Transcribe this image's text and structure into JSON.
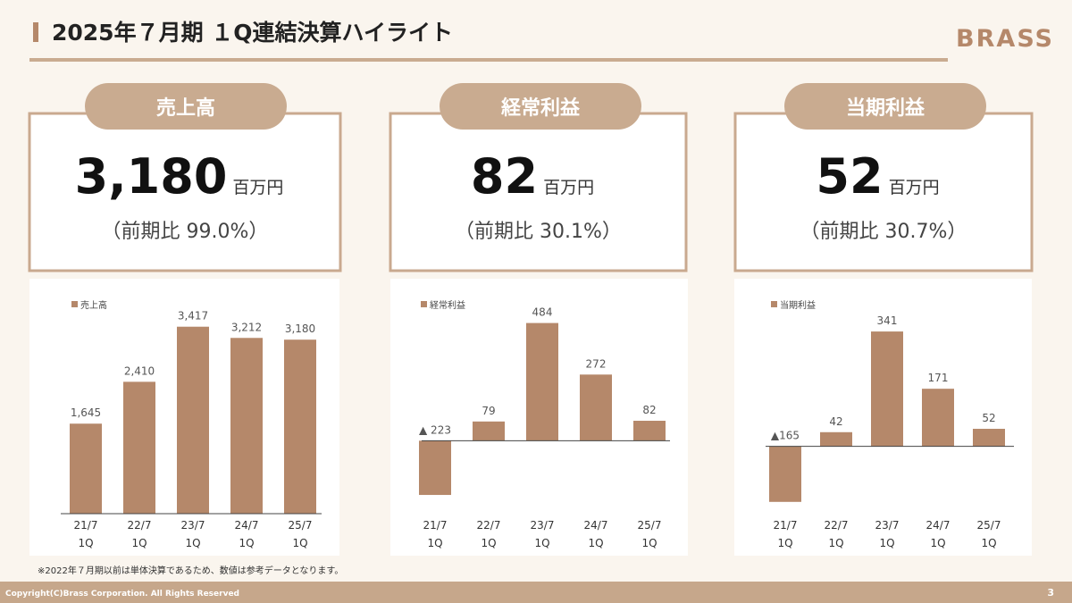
{
  "header": {
    "title": "2025年７月期 １Q連結決算ハイライト",
    "logo": "BRASS"
  },
  "cards": [
    {
      "label": "売上高",
      "value": "3,180",
      "unit": "百万円",
      "comparison": "（前期比 99.0%）"
    },
    {
      "label": "経常利益",
      "value": "82",
      "unit": "百万円",
      "comparison": "（前期比 30.1%）"
    },
    {
      "label": "当期利益",
      "value": "52",
      "unit": "百万円",
      "comparison": "（前期比 30.7%）"
    }
  ],
  "chart_data": [
    {
      "type": "bar",
      "categories": [
        "21/7 1Q",
        "22/7 1Q",
        "23/7 1Q",
        "24/7 1Q",
        "25/7 1Q"
      ],
      "series": [
        {
          "name": "売上高",
          "color": "#b5886a",
          "values": [
            1645,
            2410,
            3417,
            3212,
            3180
          ],
          "value_labels": [
            "1,645",
            "2,410",
            "3,417",
            "3,212",
            "3,180"
          ]
        }
      ],
      "ylim": [
        0,
        4000
      ]
    },
    {
      "type": "bar",
      "categories": [
        "21/7 1Q",
        "22/7 1Q",
        "23/7 1Q",
        "24/7 1Q",
        "25/7 1Q"
      ],
      "series": [
        {
          "name": "経常利益",
          "color": "#b5886a",
          "values": [
            -223,
            79,
            484,
            272,
            82
          ],
          "value_labels": [
            "▲ 223",
            "79",
            "484",
            "272",
            "82"
          ]
        }
      ],
      "ylim": [
        -300,
        600
      ]
    },
    {
      "type": "bar",
      "categories": [
        "21/7 1Q",
        "22/7 1Q",
        "23/7 1Q",
        "24/7 1Q",
        "25/7 1Q"
      ],
      "series": [
        {
          "name": "当期利益",
          "color": "#b5886a",
          "values": [
            -165,
            42,
            341,
            171,
            52
          ],
          "value_labels": [
            "▲165",
            "42",
            "341",
            "171",
            "52"
          ]
        }
      ],
      "ylim": [
        -200,
        450
      ]
    }
  ],
  "footnote": "※2022年７月期以前は単体決算であるため、数値は参考データとなります。",
  "footer": {
    "copyright": "Copyright(C)Brass Corporation. All Rights Reserved",
    "page": "3"
  }
}
